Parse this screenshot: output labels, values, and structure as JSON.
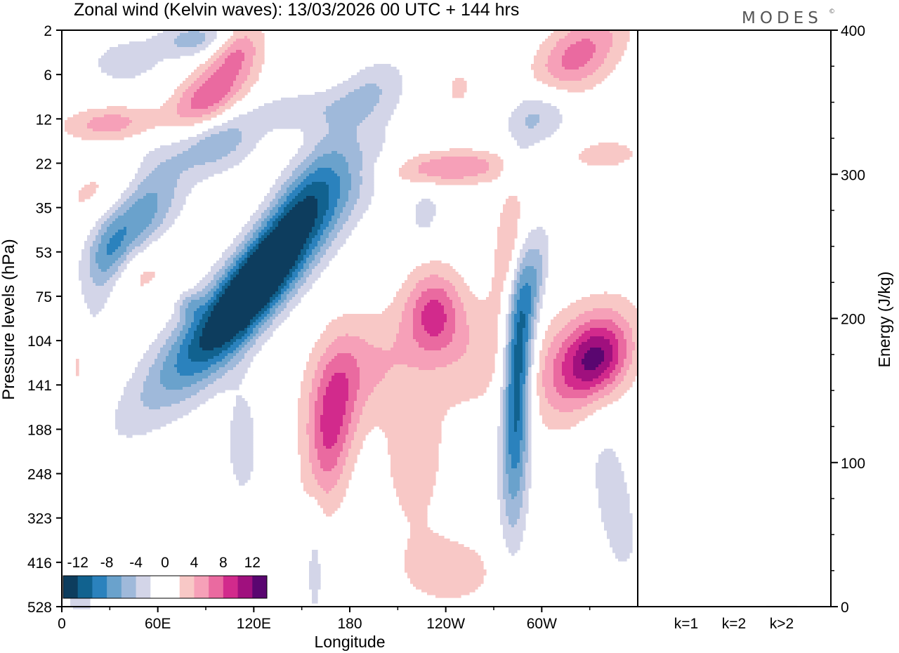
{
  "title": "Zonal wind (Kelvin waves):  13/03/2026  00 UTC  + 144 hrs",
  "logo": "MODES",
  "logo_mark": "©",
  "chart_data": [
    {
      "type": "heatmap",
      "title": "Zonal wind (Kelvin waves):  13/03/2026  00 UTC  + 144 hrs",
      "xlabel": "Longitude",
      "ylabel": "Pressure levels (hPa)",
      "x_ticks": [
        {
          "lon": 0,
          "label": "0"
        },
        {
          "lon": 60,
          "label": "60E"
        },
        {
          "lon": 120,
          "label": "120E"
        },
        {
          "lon": 180,
          "label": "180"
        },
        {
          "lon": 240,
          "label": "120W"
        },
        {
          "lon": 300,
          "label": "60W"
        }
      ],
      "xlim": [
        0,
        360
      ],
      "y_levels": [
        "2",
        "6",
        "12",
        "22",
        "35",
        "53",
        "75",
        "104",
        "141",
        "188",
        "248",
        "323",
        "416",
        "528"
      ],
      "colorbar": {
        "labels": [
          "-12",
          "-8",
          "-4",
          "0",
          "4",
          "8",
          "12"
        ],
        "colors": [
          "#0d3d5e",
          "#11628f",
          "#2b82bd",
          "#6aa2cc",
          "#9fb9da",
          "#d3d5e8",
          "#ffffff",
          "#ffffff",
          "#f8c8c6",
          "#f6a0b8",
          "#ea6aa0",
          "#d22a8c",
          "#a0107e",
          "#5a0670"
        ]
      },
      "blobs": [
        {
          "lon": 115,
          "lev": 6.0,
          "hw": 26,
          "hl": 2.3,
          "tilt": 0.9,
          "val": -13
        },
        {
          "lon": 131,
          "lev": 5.0,
          "hw": 18,
          "hl": 2.4,
          "tilt": 0.8,
          "val": -7
        },
        {
          "lon": 155,
          "lev": 4.0,
          "hw": 22,
          "hl": 1.6,
          "tilt": 0.7,
          "val": -5
        },
        {
          "lon": 113,
          "lev": 9.3,
          "hw": 12,
          "hl": 1.5,
          "tilt": 0,
          "val": -3
        },
        {
          "lon": 285,
          "lev": 7.6,
          "hw": 9,
          "hl": 3.4,
          "tilt": 0.1,
          "val": -13
        },
        {
          "lon": 297,
          "lev": 5.6,
          "hw": 7,
          "hl": 1.2,
          "tilt": 0.5,
          "val": -4
        },
        {
          "lon": 45,
          "lev": 4.5,
          "hw": 22,
          "hl": 2.0,
          "tilt": 0.5,
          "val": -9
        },
        {
          "lon": 28,
          "lev": 5.2,
          "hw": 12,
          "hl": 0.9,
          "tilt": 0.3,
          "val": -4
        },
        {
          "lon": 96,
          "lev": 2.5,
          "hw": 24,
          "hl": 0.7,
          "tilt": 0.35,
          "val": -6
        },
        {
          "lon": 40,
          "lev": 0.7,
          "hw": 26,
          "hl": 0.6,
          "tilt": 0.2,
          "val": -3
        },
        {
          "lon": 84,
          "lev": 0.2,
          "hw": 22,
          "hl": 0.4,
          "tilt": 0.3,
          "val": -5
        },
        {
          "lon": 150,
          "lev": 1.8,
          "hw": 40,
          "hl": 0.5,
          "tilt": 0.45,
          "val": -3
        },
        {
          "lon": 195,
          "lev": 1.3,
          "hw": 20,
          "hl": 0.7,
          "tilt": 0.6,
          "val": -3
        },
        {
          "lon": 298,
          "lev": 1.9,
          "hw": 20,
          "hl": 0.7,
          "tilt": 0.4,
          "val": -5
        },
        {
          "lon": 227,
          "lev": 4.1,
          "hw": 10,
          "hl": 0.6,
          "tilt": 0.2,
          "val": -3
        },
        {
          "lon": 345,
          "lev": 10.6,
          "hw": 15,
          "hl": 2.2,
          "tilt": -0.3,
          "val": -3
        },
        {
          "lon": 158,
          "lev": 12.0,
          "hw": 6,
          "hl": 1.6,
          "tilt": 0,
          "val": -3
        },
        {
          "lon": 12,
          "lev": 12.8,
          "hw": 10,
          "hl": 0.7,
          "tilt": 0,
          "val": -3
        },
        {
          "lon": 284,
          "lev": 3.1,
          "hw": 8,
          "hl": 0.4,
          "tilt": 0.5,
          "val": -4
        },
        {
          "lon": 80,
          "lev": 6.2,
          "hw": 8,
          "hl": 0.3,
          "tilt": 0,
          "val": -3
        },
        {
          "lon": 168,
          "lev": 9.0,
          "hw": 15,
          "hl": 1.8,
          "tilt": 0.2,
          "val": 8
        },
        {
          "lon": 190,
          "lev": 7.6,
          "hw": 35,
          "hl": 1.3,
          "tilt": 0.3,
          "val": 4
        },
        {
          "lon": 220,
          "lev": 9.7,
          "hw": 22,
          "hl": 1.8,
          "tilt": 0,
          "val": 3
        },
        {
          "lon": 233,
          "lev": 6.4,
          "hw": 18,
          "hl": 1.0,
          "tilt": 0,
          "val": 8
        },
        {
          "lon": 263,
          "lev": 7.3,
          "hw": 25,
          "hl": 1.4,
          "tilt": 0.3,
          "val": 3
        },
        {
          "lon": 243,
          "lev": 12.2,
          "hw": 35,
          "hl": 0.9,
          "tilt": 0,
          "val": 3
        },
        {
          "lon": 325,
          "lev": 7.5,
          "hw": 28,
          "hl": 1.3,
          "tilt": 0.3,
          "val": 8
        },
        {
          "lon": 336,
          "lev": 7.4,
          "hw": 18,
          "hl": 0.8,
          "tilt": 0.3,
          "val": 6
        },
        {
          "lon": 283,
          "lev": 4.6,
          "hw": 10,
          "hl": 1.5,
          "tilt": 0.3,
          "val": 7
        },
        {
          "lon": 42,
          "lev": 5.5,
          "hw": 22,
          "hl": 0.9,
          "tilt": 0.6,
          "val": 7
        },
        {
          "lon": 30,
          "lev": 3.6,
          "hw": 32,
          "hl": 0.8,
          "tilt": 0.6,
          "val": 3
        },
        {
          "lon": 90,
          "lev": 1.6,
          "hw": 22,
          "hl": 0.9,
          "tilt": 0.7,
          "val": 9
        },
        {
          "lon": 110,
          "lev": 0.4,
          "hw": 15,
          "hl": 0.6,
          "tilt": 0.5,
          "val": 5
        },
        {
          "lon": 30,
          "lev": 2.1,
          "hw": 30,
          "hl": 0.4,
          "tilt": 0.4,
          "val": 5
        },
        {
          "lon": 322,
          "lev": 0.6,
          "hw": 25,
          "hl": 1.0,
          "tilt": 0.6,
          "val": 7
        },
        {
          "lon": 340,
          "lev": 2.8,
          "hw": 25,
          "hl": 0.4,
          "tilt": 0.3,
          "val": 3
        },
        {
          "lon": 244,
          "lev": 3.1,
          "hw": 38,
          "hl": 0.4,
          "tilt": 0.4,
          "val": 6
        },
        {
          "lon": 145,
          "lev": 4.6,
          "hw": 22,
          "hl": 1.0,
          "tilt": 0.5,
          "val": 3
        },
        {
          "lon": 10,
          "lev": 7.5,
          "hw": 6,
          "hl": 0.8,
          "tilt": 0,
          "val": 3
        },
        {
          "lon": 248,
          "lev": 1.3,
          "hw": 8,
          "hl": 0.4,
          "tilt": 0.5,
          "val": 3
        }
      ]
    },
    {
      "type": "bar",
      "categories": [
        "k=1",
        "k=2",
        "k>2"
      ],
      "values": [
        0.3,
        0.4,
        0.5
      ],
      "ylabel": "Energy (J/kg)",
      "ylim": [
        0,
        400
      ],
      "y_ticks": [
        "0",
        "100",
        "200",
        "300",
        "400"
      ]
    }
  ]
}
